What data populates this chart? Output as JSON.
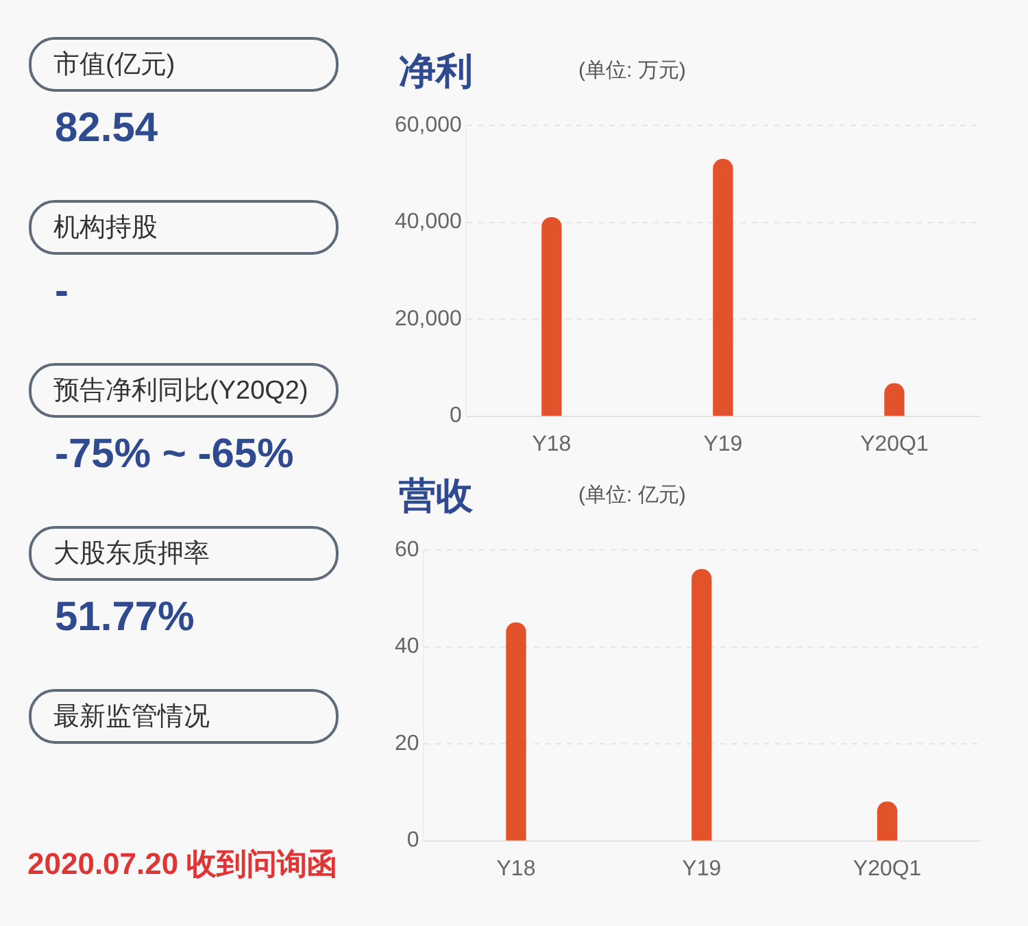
{
  "chart_data": [
    {
      "type": "other",
      "annotations": [
        "市值(亿元)",
        "82.54",
        "机构持股",
        "-",
        "预告净利同比(Y20Q2)",
        "-75% ~ -65%",
        "大股东质押率",
        "51.77%",
        "最新监管情况",
        "2020.07.20 收到问询函"
      ]
    },
    {
      "type": "bar",
      "title": "净利",
      "subtitle": "(单位: 万元)",
      "categories": [
        "Y18",
        "Y19",
        "Y20Q1"
      ],
      "series": [
        {
          "color": "#e2522b",
          "values": [
            41000,
            53000,
            6700
          ]
        }
      ],
      "ylim": [
        0,
        60000
      ],
      "yticks": [
        {
          "value": 0,
          "label": "0"
        },
        {
          "value": 20000,
          "label": "20,000"
        },
        {
          "value": 40000,
          "label": "40,000"
        },
        {
          "value": 60000,
          "label": "60,000"
        }
      ],
      "grid": "y",
      "legend": false
    },
    {
      "type": "bar",
      "title": "营收",
      "subtitle": "(单位: 亿元)",
      "categories": [
        "Y18",
        "Y19",
        "Y20Q1"
      ],
      "series": [
        {
          "color": "#e2522b",
          "values": [
            45,
            56,
            8
          ]
        }
      ],
      "ylim": [
        0,
        60
      ],
      "yticks": [
        0,
        20,
        40,
        60
      ],
      "grid": "y",
      "legend": false
    }
  ]
}
